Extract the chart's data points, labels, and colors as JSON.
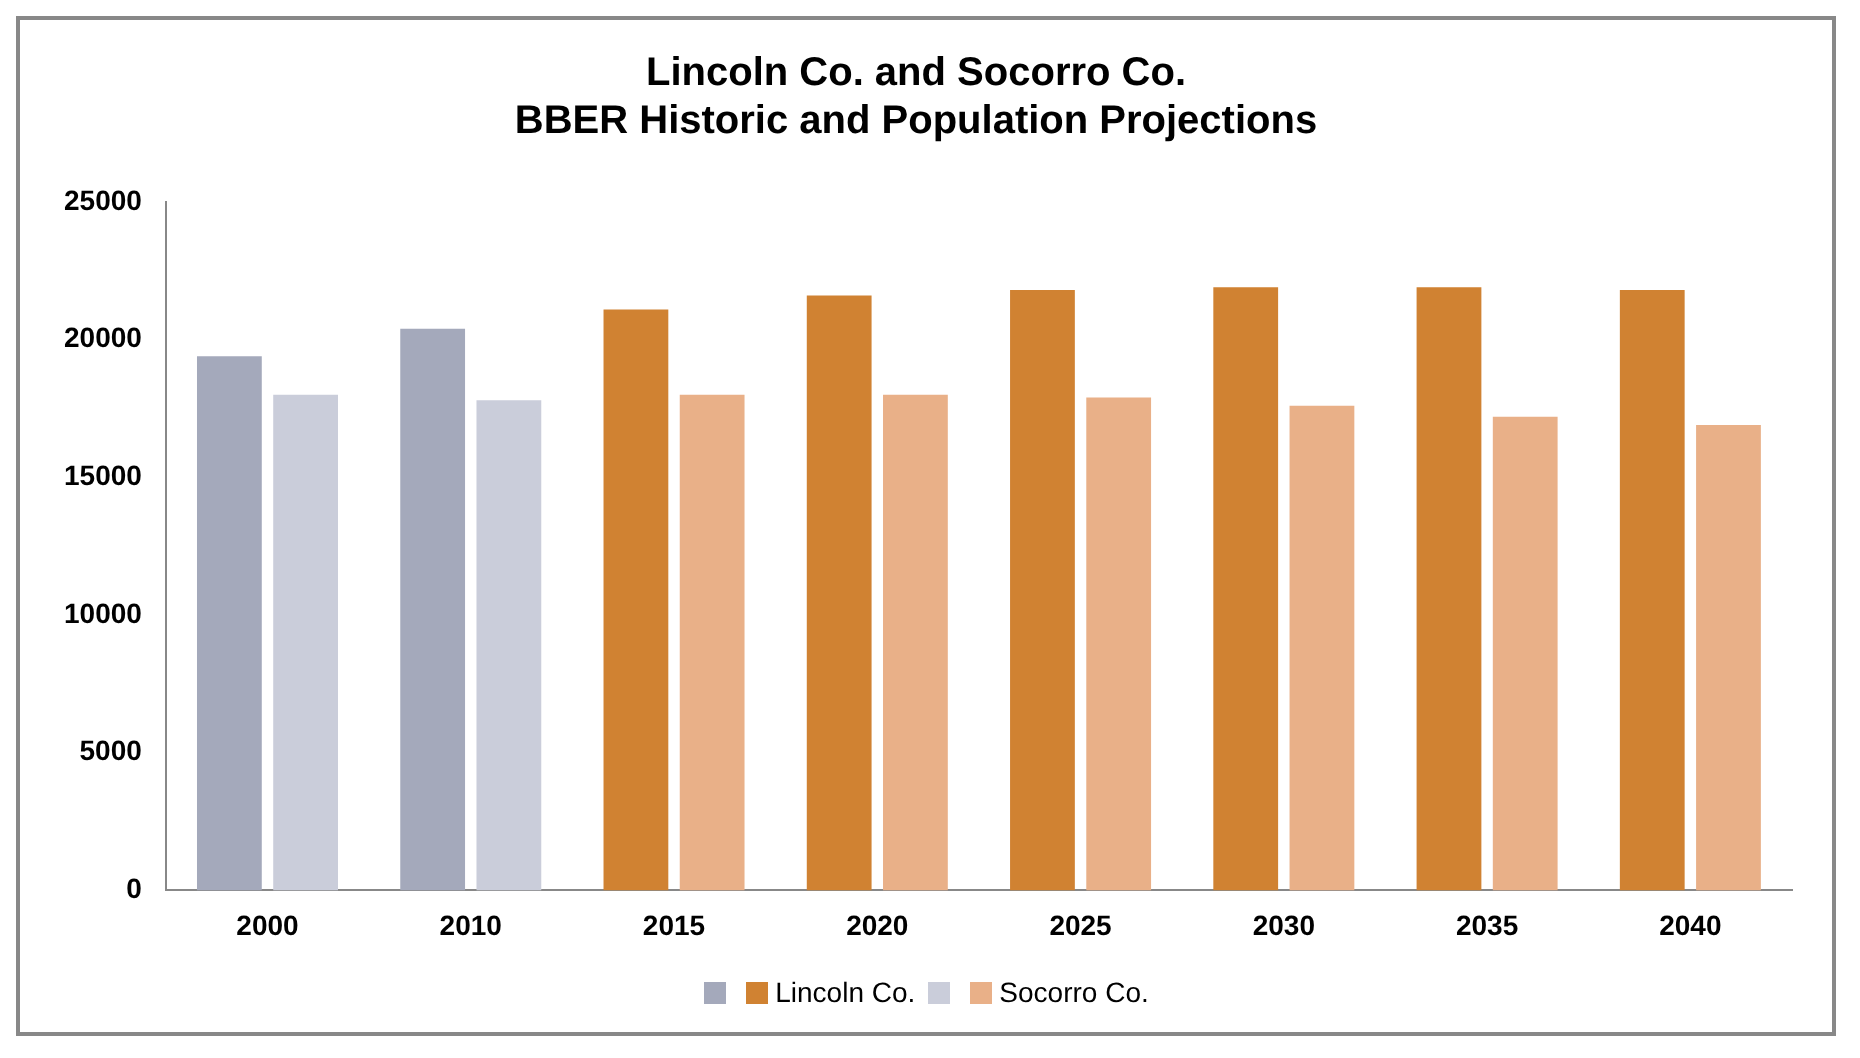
{
  "chart_data": {
    "type": "bar",
    "title": "Lincoln Co. and Socorro Co.\nBBER Historic and Population Projections",
    "categories": [
      "2000",
      "2010",
      "2015",
      "2020",
      "2025",
      "2030",
      "2035",
      "2040"
    ],
    "series": [
      {
        "name": "Lincoln Co.",
        "color": "#d08232",
        "colors": [
          "#a4a9bb",
          "#a4a9bb",
          "#d08232",
          "#d08232",
          "#d08232",
          "#d08232",
          "#d08232",
          "#d08232"
        ],
        "values": [
          19400,
          20400,
          21100,
          21600,
          21800,
          21900,
          21900,
          21800
        ]
      },
      {
        "name": "Socorro Co.",
        "color": "#e9b088",
        "colors": [
          "#cacdda",
          "#cacdda",
          "#e9b088",
          "#e9b088",
          "#e9b088",
          "#e9b088",
          "#e9b088",
          "#e9b088"
        ],
        "values": [
          18000,
          17800,
          18000,
          18000,
          17900,
          17600,
          17200,
          16900
        ]
      }
    ],
    "ylim": [
      0,
      25000
    ],
    "yticks": [
      0,
      5000,
      10000,
      15000,
      20000,
      25000
    ],
    "grid": false,
    "legend": "bottom"
  }
}
